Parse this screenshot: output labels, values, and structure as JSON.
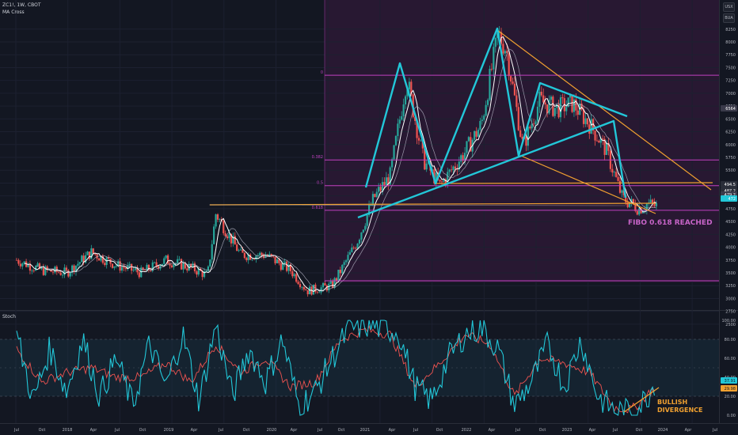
{
  "header": {
    "symbol_line": "ZC1!, 1W, CBOT",
    "indicator": "MA Cross"
  },
  "stoch_label": "Stoch",
  "side_buttons": {
    "top": "USX",
    "second": "BUA"
  },
  "price_axis": [
    "8250",
    "8000",
    "7750",
    "7500",
    "7250",
    "7000",
    "6750",
    "6500",
    "6250",
    "6000",
    "5750",
    "5500",
    "5250",
    "5000",
    "4750",
    "4500",
    "4250",
    "4000",
    "3750",
    "3500",
    "3250",
    "3000",
    "2750",
    "2500"
  ],
  "price_markers": [
    "6564",
    "494.5",
    "487.2",
    "479.2",
    "472"
  ],
  "stoch_axis": [
    "100.00",
    "80.00",
    "60.00",
    "40.00",
    "20.00",
    "0.00"
  ],
  "stoch_markers": [
    "37.91",
    "29.98"
  ],
  "x_axis": [
    "Jul",
    "Oct",
    "2018",
    "Apr",
    "Jul",
    "Oct",
    "2019",
    "Apr",
    "Jul",
    "Oct",
    "2020",
    "Apr",
    "Jul",
    "Oct",
    "2021",
    "Apr",
    "Jul",
    "Oct",
    "2022",
    "Apr",
    "Jul",
    "Oct",
    "2023",
    "Apr",
    "Jul",
    "Oct",
    "2024",
    "Apr",
    "Jul"
  ],
  "fib_labels": [
    "0",
    "0.382",
    "0.5",
    "0.618"
  ],
  "annotations": {
    "fibo": "FIBO 0.618 REACHED",
    "divergence_1": "BULLISH",
    "divergence_2": "DIVERGENCE"
  },
  "colors": {
    "background": "#131722",
    "up": "#26a69a",
    "down": "#ef5350",
    "pattern": "#22c7d8",
    "fib": "#c040c0",
    "trend": "#f0a030",
    "shade": "#3a1a40",
    "stoch_k": "#22c7d8",
    "stoch_d": "#ef5350",
    "annotation_fibo": "#c864c8",
    "annotation_div": "#f0a030"
  },
  "chart_data": [
    {
      "type": "candlestick",
      "title": "ZC1!, 1W, CBOT",
      "ylabel": "",
      "ylim": [
        2500,
        8400
      ],
      "waypoints": {
        "t": [
          "2017-06",
          "2017-09",
          "2017-12",
          "2018-03",
          "2018-06",
          "2018-09",
          "2018-12",
          "2019-03",
          "2019-05",
          "2019-06",
          "2019-09",
          "2019-12",
          "2020-03",
          "2020-05",
          "2020-08",
          "2020-11",
          "2021-01",
          "2021-03",
          "2021-05",
          "2021-07",
          "2021-09",
          "2021-12",
          "2022-02",
          "2022-04",
          "2022-05",
          "2022-07",
          "2022-09",
          "2022-11",
          "2023-01",
          "2023-03",
          "2023-05",
          "2023-07",
          "2023-09",
          "2023-10",
          "2023-11"
        ],
        "price": [
          3750,
          3550,
          3500,
          3900,
          3650,
          3500,
          3750,
          3600,
          3450,
          4650,
          3850,
          3850,
          3550,
          3150,
          3250,
          4100,
          4950,
          5400,
          7300,
          5700,
          5200,
          5850,
          6400,
          8150,
          7850,
          5950,
          6850,
          6700,
          6800,
          6400,
          5900,
          4950,
          4750,
          4850,
          4800
        ]
      },
      "fib_levels": {
        "0": 7350,
        "0.382": 5700,
        "0.5": 5200,
        "0.618": 4720
      },
      "annotations": [
        "FIBO 0.618 REACHED"
      ]
    },
    {
      "type": "line",
      "title": "Stoch",
      "ylim": [
        0,
        100
      ],
      "bands": [
        20,
        80
      ],
      "series": [
        {
          "name": "%K",
          "waypoints_t": [
            "2017-06",
            "2017-08",
            "2017-10",
            "2017-12",
            "2018-02",
            "2018-04",
            "2018-06",
            "2018-08",
            "2018-10",
            "2018-12",
            "2019-02",
            "2019-04",
            "2019-06",
            "2019-08",
            "2019-10",
            "2019-12",
            "2020-02",
            "2020-04",
            "2020-06",
            "2020-08",
            "2020-10",
            "2020-12",
            "2021-02",
            "2021-04",
            "2021-06",
            "2021-08",
            "2021-10",
            "2021-12",
            "2022-02",
            "2022-04",
            "2022-06",
            "2022-08",
            "2022-10",
            "2022-12",
            "2023-02",
            "2023-04",
            "2023-06",
            "2023-08",
            "2023-09",
            "2023-10",
            "2023-11"
          ],
          "values": [
            85,
            15,
            70,
            25,
            80,
            20,
            60,
            10,
            75,
            30,
            85,
            15,
            95,
            20,
            70,
            35,
            80,
            10,
            25,
            60,
            90,
            95,
            92,
            88,
            30,
            15,
            60,
            85,
            92,
            70,
            10,
            35,
            75,
            30,
            80,
            20,
            5,
            3,
            10,
            20,
            38
          ]
        },
        {
          "name": "%D",
          "waypoints_t": [
            "2017-06",
            "2017-09",
            "2017-12",
            "2018-03",
            "2018-06",
            "2018-09",
            "2018-12",
            "2019-03",
            "2019-06",
            "2019-09",
            "2019-12",
            "2020-03",
            "2020-06",
            "2020-09",
            "2020-12",
            "2021-03",
            "2021-06",
            "2021-09",
            "2021-12",
            "2022-03",
            "2022-06",
            "2022-09",
            "2022-12",
            "2023-03",
            "2023-06",
            "2023-08",
            "2023-09",
            "2023-10",
            "2023-11"
          ],
          "values": [
            70,
            35,
            45,
            50,
            40,
            40,
            55,
            35,
            75,
            45,
            60,
            30,
            35,
            80,
            90,
            85,
            30,
            55,
            85,
            75,
            20,
            60,
            55,
            45,
            8,
            6,
            12,
            22,
            30
          ]
        }
      ],
      "annotations": [
        "BULLISH",
        "DIVERGENCE"
      ]
    }
  ]
}
